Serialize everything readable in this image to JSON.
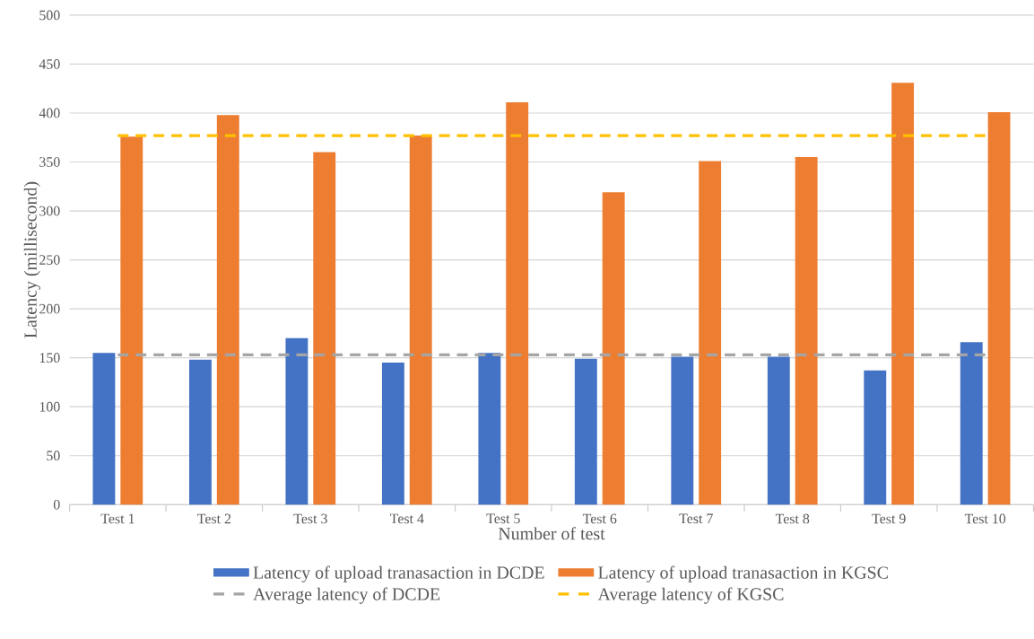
{
  "chart_data": {
    "type": "bar",
    "xlabel": "Number of test",
    "ylabel": "Latency (millisecond)",
    "categories": [
      "Test 1",
      "Test 2",
      "Test 3",
      "Test 4",
      "Test 5",
      "Test 6",
      "Test 7",
      "Test 8",
      "Test 9",
      "Test 10"
    ],
    "series": [
      {
        "name": "Latency of upload tranasaction in DCDE",
        "color": "#4472c4",
        "values": [
          155,
          148,
          170,
          145,
          155,
          149,
          151,
          151,
          137,
          166
        ]
      },
      {
        "name": "Latency of upload tranasaction in KGSC",
        "color": "#ed7d31",
        "values": [
          376,
          398,
          360,
          377,
          411,
          319,
          351,
          355,
          431,
          401
        ]
      }
    ],
    "ref_lines": [
      {
        "axis": "y",
        "value": 153,
        "label": "Average latency of DCDE",
        "color": "#a5a5a5",
        "line_style": "dashed"
      },
      {
        "axis": "y",
        "value": 377,
        "label": "Average latency of KGSC",
        "color": "#ffc000",
        "line_style": "dashed"
      }
    ],
    "ylim": [
      0,
      500
    ],
    "yticks": [
      0,
      50,
      100,
      150,
      200,
      250,
      300,
      350,
      400,
      450,
      500
    ],
    "grid": "y",
    "legend": "bottom"
  }
}
